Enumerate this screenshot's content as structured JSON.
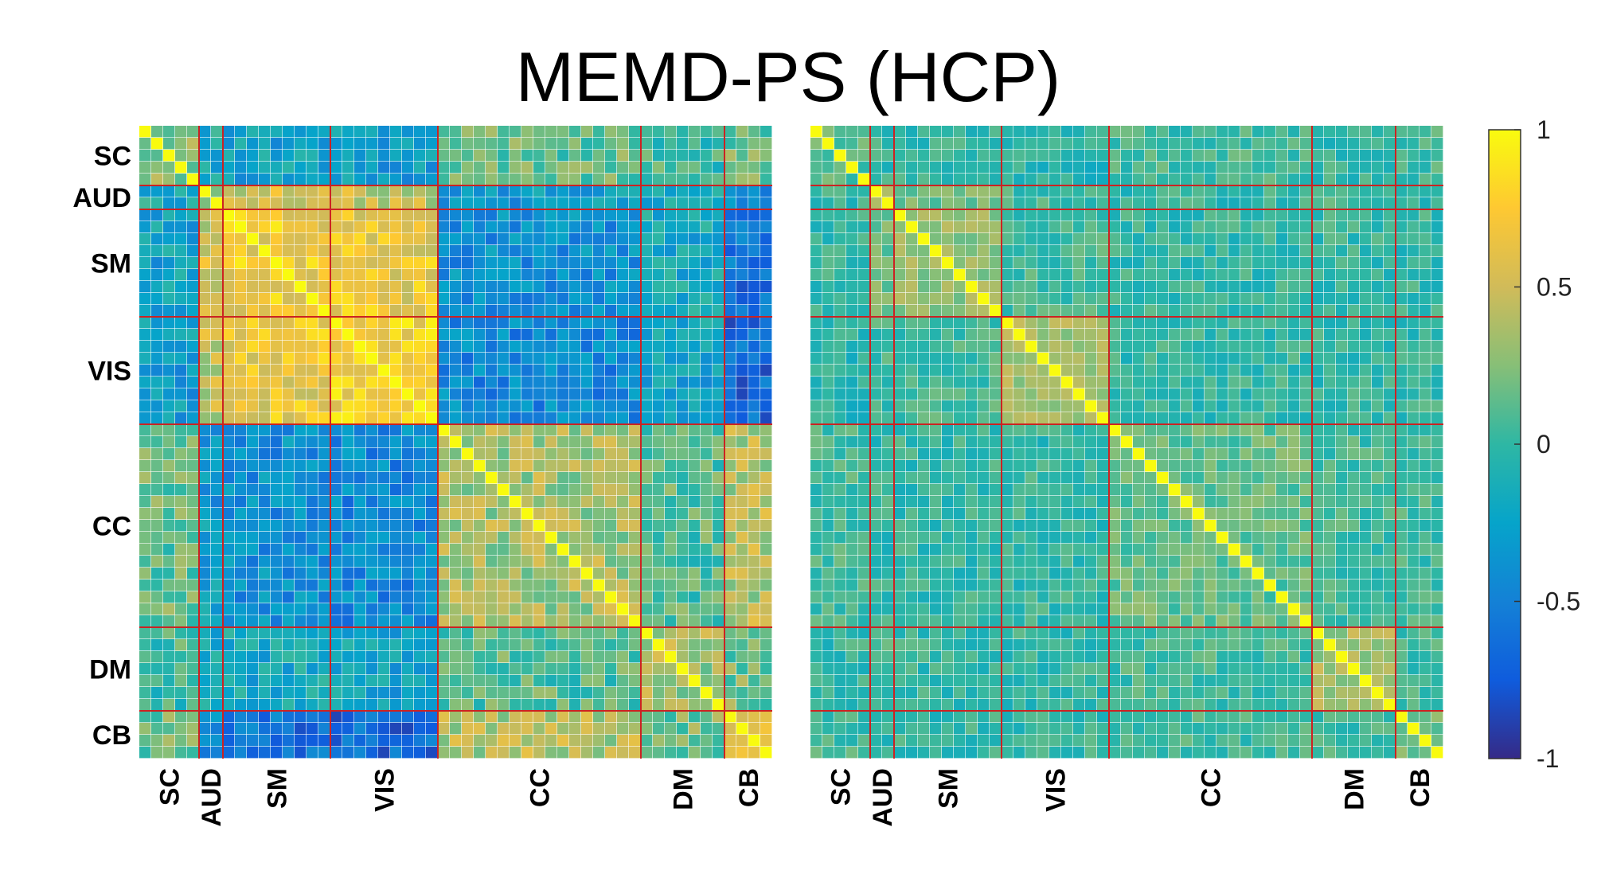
{
  "chart_data": {
    "type": "heatmap",
    "title": "MEMD-PS (HCP)",
    "networks": [
      {
        "label": "SC",
        "start": 0,
        "size": 5
      },
      {
        "label": "AUD",
        "start": 5,
        "size": 2
      },
      {
        "label": "SM",
        "start": 7,
        "size": 9
      },
      {
        "label": "VIS",
        "start": 16,
        "size": 9
      },
      {
        "label": "CC",
        "start": 25,
        "size": 17
      },
      {
        "label": "DM",
        "start": 42,
        "size": 7
      },
      {
        "label": "CB",
        "start": 49,
        "size": 4
      }
    ],
    "n_components": 53,
    "panels": [
      {
        "name": "",
        "block_means": [
          [
            0.3,
            -0.15,
            -0.25,
            -0.3,
            0.15,
            0.05,
            0.2
          ],
          [
            -0.15,
            0.4,
            0.5,
            0.45,
            -0.3,
            -0.15,
            -0.4
          ],
          [
            -0.25,
            0.5,
            0.7,
            0.65,
            -0.4,
            -0.2,
            -0.6
          ],
          [
            -0.3,
            0.45,
            0.65,
            0.75,
            -0.45,
            -0.25,
            -0.65
          ],
          [
            0.15,
            -0.3,
            -0.4,
            -0.45,
            0.35,
            0.1,
            0.4
          ],
          [
            0.05,
            -0.15,
            -0.2,
            -0.25,
            0.1,
            0.35,
            0.2
          ],
          [
            0.2,
            -0.4,
            -0.6,
            -0.65,
            0.4,
            0.2,
            0.55
          ]
        ]
      },
      {
        "name": "",
        "block_means": [
          [
            0.1,
            0.0,
            0.0,
            -0.05,
            0.05,
            0.0,
            0.05
          ],
          [
            0.0,
            0.25,
            0.2,
            0.05,
            0.0,
            0.05,
            0.0
          ],
          [
            0.0,
            0.2,
            0.3,
            0.05,
            0.0,
            0.0,
            0.0
          ],
          [
            -0.05,
            0.05,
            0.05,
            0.35,
            0.0,
            0.0,
            0.0
          ],
          [
            0.05,
            0.0,
            0.0,
            0.0,
            0.15,
            0.05,
            0.05
          ],
          [
            0.0,
            0.05,
            0.0,
            0.0,
            0.05,
            0.35,
            0.05
          ],
          [
            0.05,
            0.0,
            0.0,
            0.0,
            0.05,
            0.05,
            0.2
          ]
        ]
      }
    ],
    "colorbar": {
      "colormap": "parula",
      "range": [
        -1,
        1
      ],
      "ticks": [
        1,
        0.5,
        0,
        -0.5,
        -1
      ],
      "tick_labels": [
        "1",
        "0.5",
        "0",
        "-0.5",
        "-1"
      ]
    },
    "divider_color": "#cc2222",
    "grid": false,
    "legend": "colorbar-right"
  }
}
